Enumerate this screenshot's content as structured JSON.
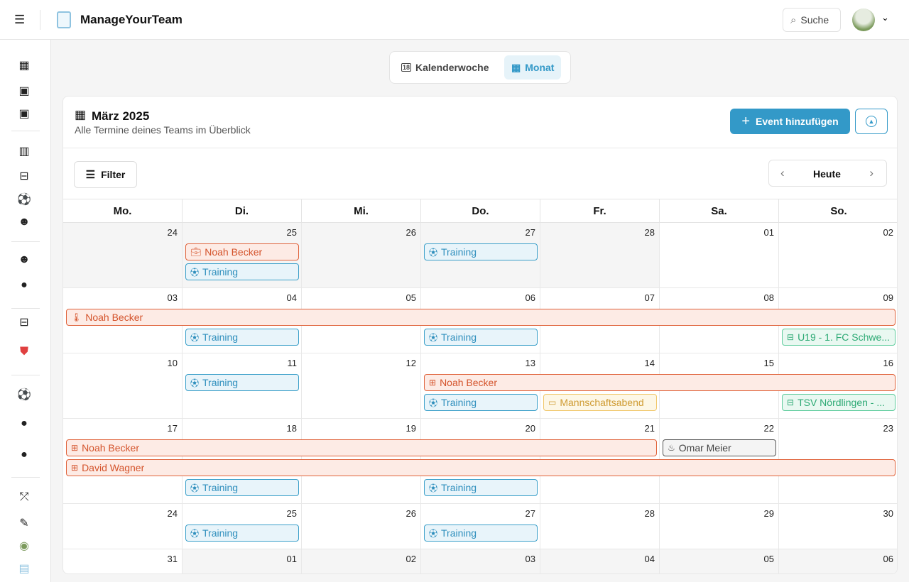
{
  "app": {
    "title": "ManageYourTeam",
    "menu_icon": "hamburger-icon",
    "search_label": "Suche"
  },
  "sidebar": {
    "icons": [
      "calendar-month-icon",
      "calendar-18-icon",
      "calendar-19-icon",
      "statistics-icon",
      "field-icon",
      "training-icon",
      "team-icon",
      "team-icon",
      "club-logo-icon",
      "field-icon",
      "club-crest-icon",
      "training-icon",
      "club-logo-icon",
      "club-logo-icon",
      "tactics-icon",
      "edit-icon",
      "avatar-icon",
      "app-logo-icon"
    ]
  },
  "view_switch": {
    "week_label": "Kalenderwoche",
    "month_label": "Monat",
    "active": "month"
  },
  "calendar": {
    "title": "März 2025",
    "subtitle": "Alle Termine deines Teams im Überblick",
    "add_event_label": "Event hinzufügen",
    "filter_label": "Filter",
    "today_label": "Heute",
    "weekdays": [
      "Mo.",
      "Di.",
      "Mi.",
      "Do.",
      "Fr.",
      "Sa.",
      "So."
    ],
    "weeks": [
      [
        "24",
        "25",
        "26",
        "27",
        "28",
        "01",
        "02"
      ],
      [
        "03",
        "04",
        "05",
        "06",
        "07",
        "08",
        "09"
      ],
      [
        "10",
        "11",
        "12",
        "13",
        "14",
        "15",
        "16"
      ],
      [
        "17",
        "18",
        "19",
        "20",
        "21",
        "22",
        "23"
      ],
      [
        "24",
        "25",
        "26",
        "27",
        "28",
        "29",
        "30"
      ],
      [
        "31",
        "01",
        "02",
        "03",
        "04",
        "05",
        "06"
      ]
    ],
    "outside_month": [
      [
        0,
        0
      ],
      [
        0,
        1
      ],
      [
        0,
        2
      ],
      [
        0,
        3
      ],
      [
        0,
        4
      ],
      [
        5,
        1
      ],
      [
        5,
        2
      ],
      [
        5,
        3
      ],
      [
        5,
        4
      ],
      [
        5,
        5
      ],
      [
        5,
        6
      ]
    ],
    "events": [
      {
        "week": 0,
        "day": 1,
        "days": 1,
        "type": "absence",
        "icon": "briefcase-icon",
        "label": "Noah Becker"
      },
      {
        "week": 0,
        "day": 1,
        "days": 1,
        "type": "training",
        "icon": "training-icon",
        "label": "Training"
      },
      {
        "week": 0,
        "day": 3,
        "days": 1,
        "type": "training",
        "icon": "training-icon",
        "label": "Training"
      },
      {
        "week": 1,
        "day": 0,
        "days": 7,
        "type": "absence",
        "icon": "thermometer-icon",
        "label": "Noah Becker"
      },
      {
        "week": 1,
        "day": 1,
        "days": 1,
        "type": "training",
        "icon": "training-icon",
        "label": "Training"
      },
      {
        "week": 1,
        "day": 3,
        "days": 1,
        "type": "training",
        "icon": "training-icon",
        "label": "Training"
      },
      {
        "week": 1,
        "day": 6,
        "days": 1,
        "type": "match",
        "icon": "field-icon",
        "label": "U19 - 1. FC Schwe..."
      },
      {
        "week": 2,
        "day": 1,
        "days": 1,
        "type": "training",
        "icon": "training-icon",
        "label": "Training"
      },
      {
        "week": 2,
        "day": 3,
        "days": 4,
        "type": "absence",
        "icon": "medkit-icon",
        "label": "Noah Becker"
      },
      {
        "week": 2,
        "day": 3,
        "days": 1,
        "type": "training",
        "icon": "training-icon",
        "label": "Training"
      },
      {
        "week": 2,
        "day": 4,
        "days": 1,
        "type": "team",
        "icon": "calendar-icon",
        "label": "Mannschaftsabend"
      },
      {
        "week": 2,
        "day": 6,
        "days": 1,
        "type": "match",
        "icon": "field-icon",
        "label": "TSV Nördlingen - ..."
      },
      {
        "week": 3,
        "day": 0,
        "days": 5,
        "type": "absence",
        "icon": "medkit-icon",
        "label": "Noah Becker"
      },
      {
        "week": 3,
        "day": 5,
        "days": 1,
        "type": "birthday",
        "icon": "cake-icon",
        "label": "Omar Meier"
      },
      {
        "week": 3,
        "day": 0,
        "days": 7,
        "type": "absence",
        "icon": "medkit-icon",
        "label": "David Wagner"
      },
      {
        "week": 3,
        "day": 1,
        "days": 1,
        "type": "training",
        "icon": "training-icon",
        "label": "Training"
      },
      {
        "week": 3,
        "day": 3,
        "days": 1,
        "type": "training",
        "icon": "training-icon",
        "label": "Training"
      },
      {
        "week": 4,
        "day": 1,
        "days": 1,
        "type": "training",
        "icon": "training-icon",
        "label": "Training"
      },
      {
        "week": 4,
        "day": 3,
        "days": 1,
        "type": "training",
        "icon": "training-icon",
        "label": "Training"
      }
    ]
  },
  "colors": {
    "primary": "#3399c8",
    "absence": "#e0623a",
    "training": "#3a9fc9",
    "match": "#3cc08a",
    "team": "#f0c76a",
    "birthday": "#555555"
  }
}
